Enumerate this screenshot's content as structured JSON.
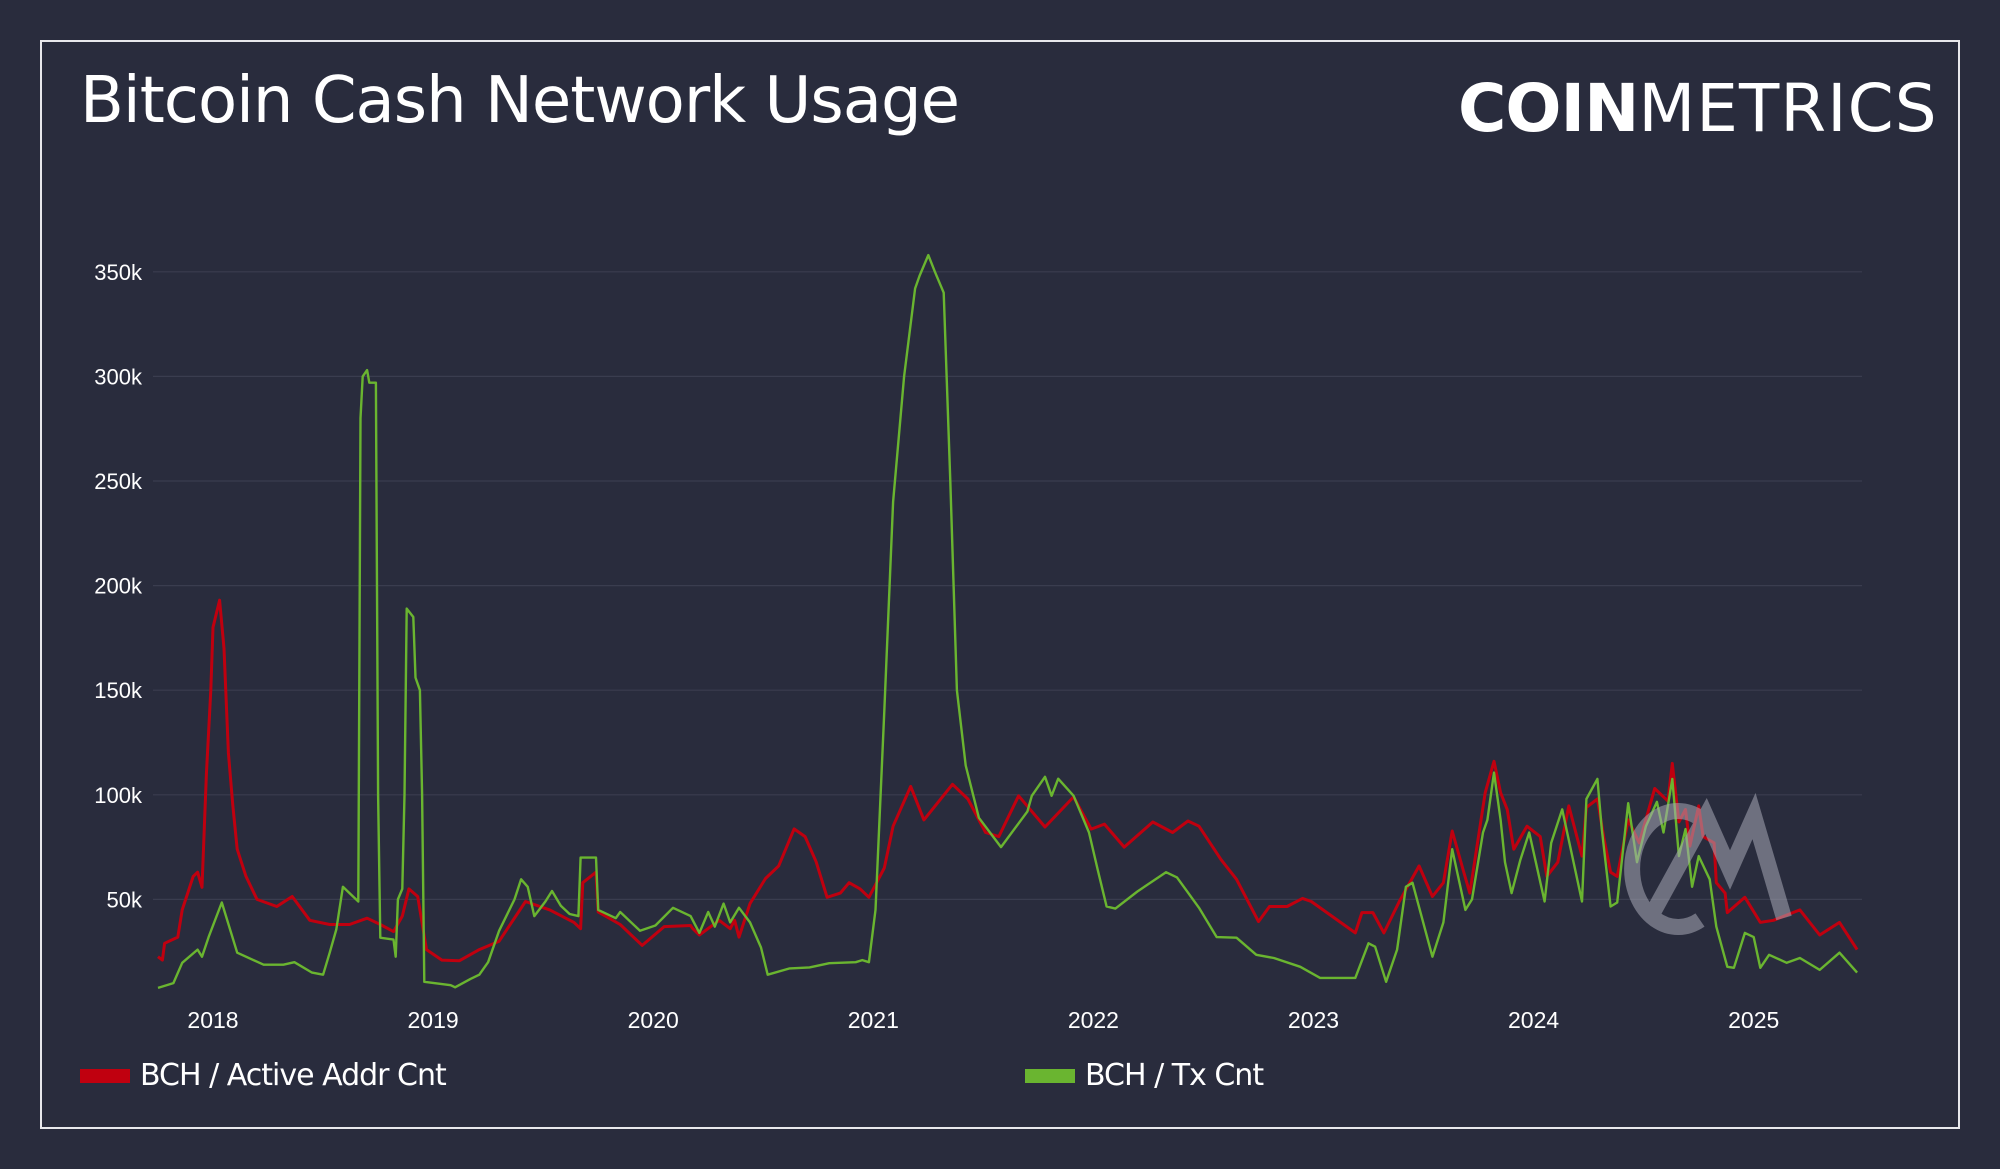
{
  "header": {
    "title": "Bitcoin Cash Network Usage",
    "logo_bold": "COIN",
    "logo_light": "METRICS",
    "watermark": "CM"
  },
  "colors": {
    "background": "#292c3d",
    "frame": "#e8e8ec",
    "grid": "#3a3d4f",
    "active_addr": "#c0000f",
    "tx_cnt": "#6ab530"
  },
  "legend": {
    "items": [
      {
        "label": "BCH / Active Addr Cnt",
        "color": "#c0000f"
      },
      {
        "label": "BCH / Tx Cnt",
        "color": "#6ab530"
      }
    ]
  },
  "chart_data": {
    "type": "line",
    "title": "Bitcoin Cash Network Usage",
    "xlabel": "",
    "ylabel": "",
    "x_ticks": [
      "2018",
      "2019",
      "2020",
      "2021",
      "2022",
      "2023",
      "2024",
      "2025"
    ],
    "y_ticks": [
      "50k",
      "100k",
      "150k",
      "200k",
      "250k",
      "300k",
      "350k"
    ],
    "ylim": [
      0,
      360000
    ],
    "xlim": [
      "2017-09",
      "2025-07"
    ],
    "grid": true,
    "legend_position": "bottom",
    "series": [
      {
        "name": "BCH / Active Addr Cnt",
        "color": "#c0000f",
        "unit": "k",
        "points": [
          [
            2017.75,
            22.6
          ],
          [
            2017.77,
            21
          ],
          [
            2017.78,
            29
          ],
          [
            2017.84,
            32
          ],
          [
            2017.86,
            45
          ],
          [
            2017.91,
            61
          ],
          [
            2017.93,
            63
          ],
          [
            2017.95,
            55.8
          ],
          [
            2017.97,
            110
          ],
          [
            2017.99,
            150
          ],
          [
            2018.0,
            180
          ],
          [
            2018.03,
            193
          ],
          [
            2018.05,
            170
          ],
          [
            2018.07,
            120
          ],
          [
            2018.09,
            95
          ],
          [
            2018.11,
            74
          ],
          [
            2018.15,
            61
          ],
          [
            2018.2,
            50
          ],
          [
            2018.29,
            46.6
          ],
          [
            2018.36,
            51.4
          ],
          [
            2018.44,
            40
          ],
          [
            2018.53,
            38
          ],
          [
            2018.62,
            38
          ],
          [
            2018.7,
            41
          ],
          [
            2018.76,
            38
          ],
          [
            2018.82,
            34.6
          ],
          [
            2018.86,
            42
          ],
          [
            2018.89,
            55
          ],
          [
            2018.93,
            51.4
          ],
          [
            2018.97,
            26
          ],
          [
            2019.04,
            21
          ],
          [
            2019.12,
            20.7
          ],
          [
            2019.21,
            26
          ],
          [
            2019.3,
            30
          ],
          [
            2019.42,
            49
          ],
          [
            2019.53,
            45
          ],
          [
            2019.64,
            39
          ],
          [
            2019.67,
            36
          ],
          [
            2019.68,
            58
          ],
          [
            2019.74,
            63
          ],
          [
            2019.75,
            44
          ],
          [
            2019.85,
            38
          ],
          [
            2019.95,
            28
          ],
          [
            2020.05,
            37
          ],
          [
            2020.17,
            37.5
          ],
          [
            2020.18,
            36
          ],
          [
            2020.21,
            33
          ],
          [
            2020.3,
            40
          ],
          [
            2020.35,
            36
          ],
          [
            2020.37,
            40
          ],
          [
            2020.39,
            32
          ],
          [
            2020.44,
            48
          ],
          [
            2020.51,
            60
          ],
          [
            2020.57,
            66
          ],
          [
            2020.64,
            83.7
          ],
          [
            2020.69,
            80
          ],
          [
            2020.74,
            68
          ],
          [
            2020.79,
            51
          ],
          [
            2020.85,
            53
          ],
          [
            2020.89,
            58
          ],
          [
            2020.94,
            55
          ],
          [
            2020.98,
            51
          ],
          [
            2021.05,
            65
          ],
          [
            2021.09,
            85
          ],
          [
            2021.17,
            104
          ],
          [
            2021.23,
            88
          ],
          [
            2021.36,
            105
          ],
          [
            2021.43,
            98
          ],
          [
            2021.51,
            82
          ],
          [
            2021.57,
            80
          ],
          [
            2021.66,
            99.5
          ],
          [
            2021.78,
            84.6
          ],
          [
            2021.91,
            99
          ],
          [
            2021.99,
            83.6
          ],
          [
            2022.05,
            86
          ],
          [
            2022.14,
            75
          ],
          [
            2022.27,
            87
          ],
          [
            2022.36,
            82
          ],
          [
            2022.43,
            87.5
          ],
          [
            2022.48,
            85
          ],
          [
            2022.58,
            69
          ],
          [
            2022.65,
            59.6
          ],
          [
            2022.75,
            39.4
          ],
          [
            2022.8,
            46.6
          ],
          [
            2022.88,
            46.6
          ],
          [
            2022.95,
            50.5
          ],
          [
            2022.99,
            49
          ],
          [
            2023.19,
            34
          ],
          [
            2023.22,
            43.7
          ],
          [
            2023.27,
            43.7
          ],
          [
            2023.32,
            34
          ],
          [
            2023.39,
            49
          ],
          [
            2023.48,
            66
          ],
          [
            2023.54,
            51.4
          ],
          [
            2023.59,
            58
          ],
          [
            2023.63,
            82.7
          ],
          [
            2023.68,
            64
          ],
          [
            2023.71,
            53
          ],
          [
            2023.78,
            101
          ],
          [
            2023.82,
            116
          ],
          [
            2023.85,
            101
          ],
          [
            2023.88,
            93
          ],
          [
            2023.91,
            74
          ],
          [
            2023.97,
            85
          ],
          [
            2024.03,
            80
          ],
          [
            2024.06,
            61
          ],
          [
            2024.11,
            67.8
          ],
          [
            2024.16,
            94.7
          ],
          [
            2024.22,
            70.7
          ],
          [
            2024.24,
            94
          ],
          [
            2024.29,
            98
          ],
          [
            2024.32,
            79
          ],
          [
            2024.35,
            63
          ],
          [
            2024.38,
            61
          ],
          [
            2024.43,
            88
          ],
          [
            2024.48,
            77
          ],
          [
            2024.55,
            103
          ],
          [
            2024.61,
            97
          ],
          [
            2024.63,
            115
          ],
          [
            2024.66,
            87
          ],
          [
            2024.69,
            93
          ],
          [
            2024.71,
            75.5
          ],
          [
            2024.75,
            94.7
          ],
          [
            2024.77,
            80
          ],
          [
            2024.82,
            77
          ],
          [
            2024.83,
            58
          ],
          [
            2024.87,
            53
          ],
          [
            2024.88,
            43.7
          ],
          [
            2024.96,
            51
          ],
          [
            2025.03,
            39
          ],
          [
            2025.09,
            40
          ],
          [
            2025.21,
            45
          ],
          [
            2025.3,
            33
          ],
          [
            2025.39,
            39
          ],
          [
            2025.47,
            26
          ]
        ]
      },
      {
        "name": "BCH / Tx Cnt",
        "color": "#6ab530",
        "unit": "k",
        "points": [
          [
            2017.75,
            7.7
          ],
          [
            2017.82,
            10
          ],
          [
            2017.86,
            19.7
          ],
          [
            2017.93,
            26
          ],
          [
            2017.95,
            22.6
          ],
          [
            2017.98,
            32
          ],
          [
            2018.04,
            48.5
          ],
          [
            2018.11,
            24.5
          ],
          [
            2018.23,
            18.8
          ],
          [
            2018.32,
            18.8
          ],
          [
            2018.37,
            20
          ],
          [
            2018.45,
            15
          ],
          [
            2018.5,
            14
          ],
          [
            2018.53,
            24.5
          ],
          [
            2018.56,
            35.6
          ],
          [
            2018.59,
            56
          ],
          [
            2018.66,
            49
          ],
          [
            2018.67,
            280
          ],
          [
            2018.68,
            300
          ],
          [
            2018.7,
            303
          ],
          [
            2018.71,
            297
          ],
          [
            2018.74,
            297
          ],
          [
            2018.75,
            100
          ],
          [
            2018.76,
            31.7
          ],
          [
            2018.82,
            30.8
          ],
          [
            2018.83,
            22.6
          ],
          [
            2018.84,
            50
          ],
          [
            2018.86,
            55
          ],
          [
            2018.87,
            100
          ],
          [
            2018.88,
            189
          ],
          [
            2018.91,
            185
          ],
          [
            2018.92,
            156
          ],
          [
            2018.94,
            150
          ],
          [
            2018.95,
            100
          ],
          [
            2018.96,
            10.6
          ],
          [
            2019.08,
            9
          ],
          [
            2019.1,
            8
          ],
          [
            2019.17,
            12
          ],
          [
            2019.21,
            14
          ],
          [
            2019.25,
            20
          ],
          [
            2019.3,
            35
          ],
          [
            2019.37,
            50
          ],
          [
            2019.4,
            59.6
          ],
          [
            2019.43,
            56
          ],
          [
            2019.46,
            42
          ],
          [
            2019.51,
            49
          ],
          [
            2019.54,
            54
          ],
          [
            2019.58,
            47
          ],
          [
            2019.62,
            43
          ],
          [
            2019.66,
            42
          ],
          [
            2019.67,
            70
          ],
          [
            2019.74,
            70
          ],
          [
            2019.75,
            45
          ],
          [
            2019.83,
            41
          ],
          [
            2019.85,
            44
          ],
          [
            2019.94,
            35
          ],
          [
            2020.01,
            37.5
          ],
          [
            2020.09,
            46
          ],
          [
            2020.17,
            42
          ],
          [
            2020.21,
            34
          ],
          [
            2020.25,
            44
          ],
          [
            2020.28,
            37
          ],
          [
            2020.32,
            48
          ],
          [
            2020.35,
            39
          ],
          [
            2020.39,
            46
          ],
          [
            2020.44,
            39
          ],
          [
            2020.49,
            27
          ],
          [
            2020.52,
            14
          ],
          [
            2020.62,
            17
          ],
          [
            2020.71,
            17.5
          ],
          [
            2020.8,
            19.5
          ],
          [
            2020.92,
            20
          ],
          [
            2020.95,
            21
          ],
          [
            2020.98,
            20
          ],
          [
            2021.01,
            45
          ],
          [
            2021.05,
            140
          ],
          [
            2021.09,
            240
          ],
          [
            2021.14,
            300
          ],
          [
            2021.19,
            342
          ],
          [
            2021.21,
            348
          ],
          [
            2021.25,
            358
          ],
          [
            2021.28,
            350
          ],
          [
            2021.32,
            340
          ],
          [
            2021.35,
            250
          ],
          [
            2021.38,
            150
          ],
          [
            2021.42,
            114
          ],
          [
            2021.48,
            89
          ],
          [
            2021.58,
            75
          ],
          [
            2021.7,
            92
          ],
          [
            2021.72,
            99.5
          ],
          [
            2021.78,
            108.6
          ],
          [
            2021.81,
            99.5
          ],
          [
            2021.84,
            107.7
          ],
          [
            2021.91,
            99.5
          ],
          [
            2021.98,
            82
          ],
          [
            2022.02,
            64
          ],
          [
            2022.06,
            46.6
          ],
          [
            2022.1,
            45.6
          ],
          [
            2022.2,
            53.8
          ],
          [
            2022.33,
            63
          ],
          [
            2022.38,
            60.5
          ],
          [
            2022.48,
            46
          ],
          [
            2022.56,
            32
          ],
          [
            2022.65,
            31.7
          ],
          [
            2022.74,
            23.5
          ],
          [
            2022.82,
            22
          ],
          [
            2022.94,
            17.8
          ],
          [
            2023.03,
            12.5
          ],
          [
            2023.19,
            12.5
          ],
          [
            2023.25,
            29
          ],
          [
            2023.28,
            27.4
          ],
          [
            2023.33,
            10.6
          ],
          [
            2023.38,
            26
          ],
          [
            2023.42,
            56
          ],
          [
            2023.45,
            58
          ],
          [
            2023.54,
            22.6
          ],
          [
            2023.59,
            39
          ],
          [
            2023.63,
            74
          ],
          [
            2023.69,
            45
          ],
          [
            2023.72,
            50
          ],
          [
            2023.77,
            82
          ],
          [
            2023.79,
            88
          ],
          [
            2023.82,
            110.6
          ],
          [
            2023.85,
            88
          ],
          [
            2023.87,
            67.8
          ],
          [
            2023.9,
            53
          ],
          [
            2023.94,
            69
          ],
          [
            2023.98,
            82
          ],
          [
            2024.05,
            49
          ],
          [
            2024.08,
            77
          ],
          [
            2024.13,
            93
          ],
          [
            2024.22,
            49
          ],
          [
            2024.24,
            98
          ],
          [
            2024.29,
            107.6
          ],
          [
            2024.31,
            83.6
          ],
          [
            2024.35,
            46.6
          ],
          [
            2024.38,
            48.5
          ],
          [
            2024.43,
            96
          ],
          [
            2024.47,
            67.8
          ],
          [
            2024.51,
            85
          ],
          [
            2024.56,
            96.6
          ],
          [
            2024.59,
            82
          ],
          [
            2024.63,
            107.6
          ],
          [
            2024.66,
            70.7
          ],
          [
            2024.69,
            83.6
          ],
          [
            2024.72,
            56
          ],
          [
            2024.75,
            70.7
          ],
          [
            2024.8,
            59.6
          ],
          [
            2024.83,
            37
          ],
          [
            2024.88,
            17.8
          ],
          [
            2024.91,
            17.3
          ],
          [
            2024.96,
            34
          ],
          [
            2025.0,
            32
          ],
          [
            2025.03,
            17.3
          ],
          [
            2025.07,
            23.5
          ],
          [
            2025.15,
            19.7
          ],
          [
            2025.21,
            22
          ],
          [
            2025.3,
            16.3
          ],
          [
            2025.39,
            24.5
          ],
          [
            2025.47,
            15
          ]
        ]
      }
    ]
  }
}
